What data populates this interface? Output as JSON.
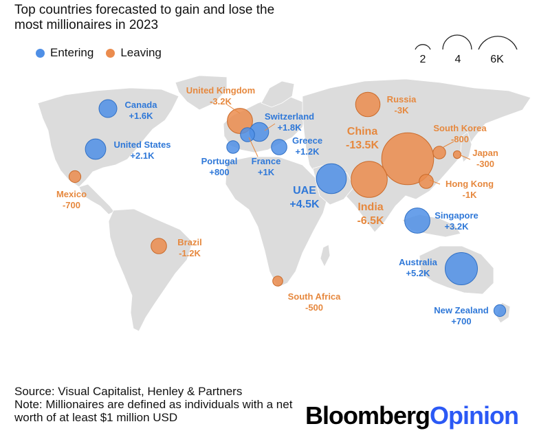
{
  "title": "Top countries forecasted to gain and lose the most millionaires in 2023",
  "legend": {
    "entering": "Entering",
    "leaving": "Leaving"
  },
  "size_key": {
    "labels": [
      "2",
      "4",
      "6K"
    ]
  },
  "colors": {
    "entering": "#4f8fe6",
    "leaving": "#eb8c4e",
    "map": "#dcdcdc"
  },
  "chart_data": {
    "type": "bubble-map",
    "title": "Top countries forecasted to gain and lose the most millionaires in 2023",
    "size_legend": [
      "2",
      "4",
      "6K"
    ],
    "series": [
      {
        "name": "Entering",
        "points": [
          {
            "country": "Canada",
            "label": "+1.6K",
            "value": 1600
          },
          {
            "country": "United States",
            "label": "+2.1K",
            "value": 2100
          },
          {
            "country": "Switzerland",
            "label": "+1.8K",
            "value": 1800
          },
          {
            "country": "Greece",
            "label": "+1.2K",
            "value": 1200
          },
          {
            "country": "Portugal",
            "label": "+800",
            "value": 800
          },
          {
            "country": "France",
            "label": "+1K",
            "value": 1000
          },
          {
            "country": "UAE",
            "label": "+4.5K",
            "value": 4500
          },
          {
            "country": "Singapore",
            "label": "+3.2K",
            "value": 3200
          },
          {
            "country": "Australia",
            "label": "+5.2K",
            "value": 5200
          },
          {
            "country": "New Zealand",
            "label": "+700",
            "value": 700
          }
        ]
      },
      {
        "name": "Leaving",
        "points": [
          {
            "country": "United Kingdom",
            "label": "-3.2K",
            "value": -3200
          },
          {
            "country": "Russia",
            "label": "-3K",
            "value": -3000
          },
          {
            "country": "China",
            "label": "-13.5K",
            "value": -13500
          },
          {
            "country": "South Korea",
            "label": "-800",
            "value": -800
          },
          {
            "country": "Japan",
            "label": "-300",
            "value": -300
          },
          {
            "country": "Hong Kong",
            "label": "-1K",
            "value": -1000
          },
          {
            "country": "India",
            "label": "-6.5K",
            "value": -6500
          },
          {
            "country": "Mexico",
            "label": "-700",
            "value": -700
          },
          {
            "country": "Brazil",
            "label": "-1.2K",
            "value": -1200
          },
          {
            "country": "South Africa",
            "label": "-500",
            "value": -500
          }
        ]
      }
    ]
  },
  "footer": {
    "source": "Source: Visual Capitalist, Henley & Partners",
    "note": "Note: Millionaires are defined as individuals with a net worth of at least $1 million USD"
  },
  "brand": {
    "part1": "Bloomberg",
    "part2": "Opinion"
  }
}
